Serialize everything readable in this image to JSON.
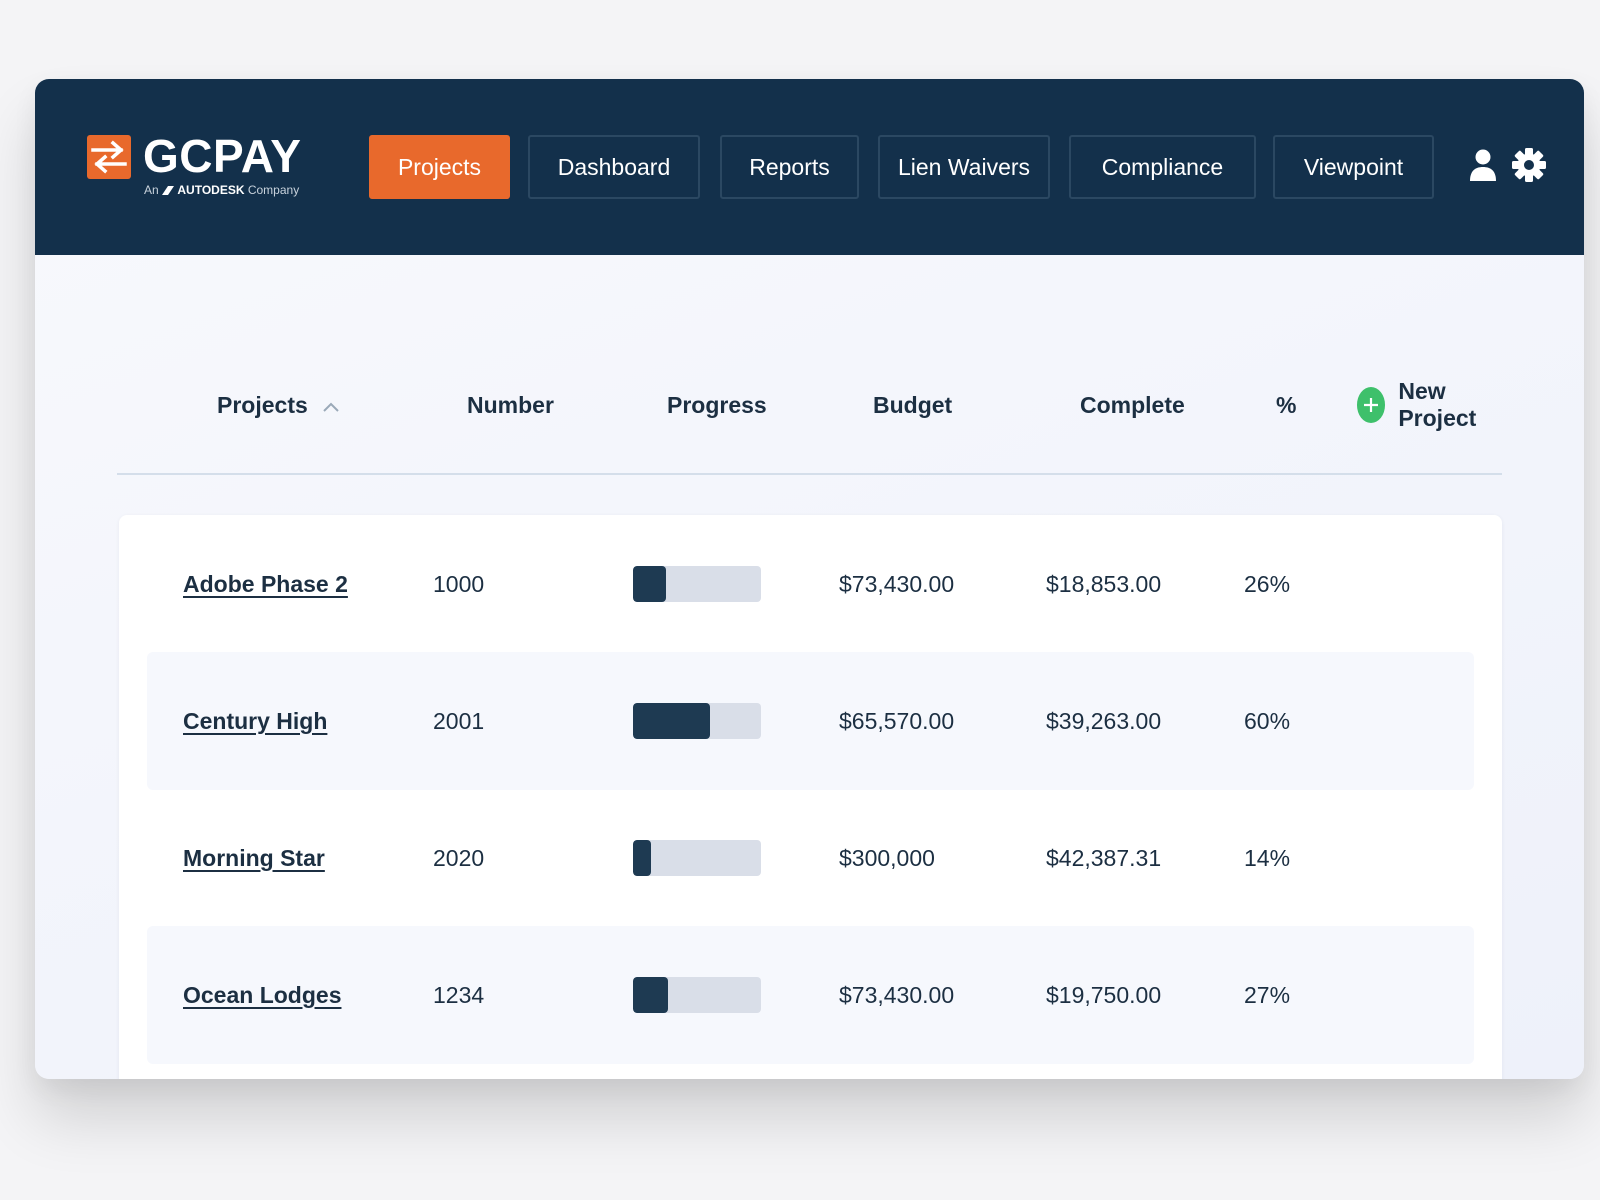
{
  "brand": {
    "name": "GCPAY",
    "sub_prefix": "An",
    "sub_brand": "AUTODESK",
    "sub_suffix": "Company",
    "accent": "#e8692c",
    "navy": "#13304b"
  },
  "nav": {
    "items": [
      {
        "label": "Projects",
        "active": true
      },
      {
        "label": "Dashboard",
        "active": false
      },
      {
        "label": "Reports",
        "active": false
      },
      {
        "label": "Lien Waivers",
        "active": false
      },
      {
        "label": "Compliance",
        "active": false
      },
      {
        "label": "Viewpoint",
        "active": false
      }
    ],
    "icons": [
      "user-icon",
      "gear-icon"
    ]
  },
  "table": {
    "headers": {
      "projects": "Projects",
      "number": "Number",
      "progress": "Progress",
      "budget": "Budget",
      "complete": "Complete",
      "percent": "%"
    },
    "sort": {
      "column": "projects",
      "direction": "ascending",
      "icon": "chevron-up-icon"
    },
    "new_project_label": "New Project",
    "new_project_icon": "plus-circle-icon",
    "new_project_color": "#3ec06b",
    "rows": [
      {
        "name": "Adobe Phase 2",
        "number": "1000",
        "progress": 0.26,
        "budget": "$73,430.00",
        "complete": "$18,853.00",
        "percent": "26%"
      },
      {
        "name": "Century High",
        "number": "2001",
        "progress": 0.6,
        "budget": "$65,570.00",
        "complete": "$39,263.00",
        "percent": "60%"
      },
      {
        "name": "Morning Star",
        "number": "2020",
        "progress": 0.14,
        "budget": "$300,000",
        "complete": "$42,387.31",
        "percent": "14%"
      },
      {
        "name": "Ocean Lodges",
        "number": "1234",
        "progress": 0.27,
        "budget": "$73,430.00",
        "complete": "$19,750.00",
        "percent": "27%"
      }
    ]
  }
}
